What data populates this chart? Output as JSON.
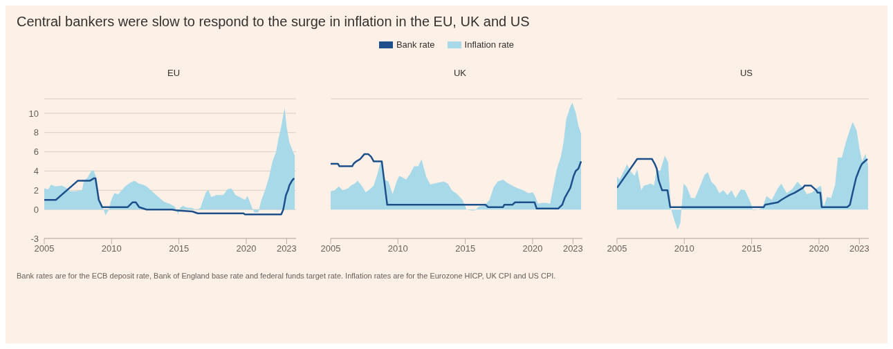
{
  "chart_data": [
    {
      "type": "area",
      "title": "EU",
      "annotations": [
        "Central bankers were slow to respond to the surge in inflation in the EU, UK and US",
        "Bank rates are for the ECB deposit rate, Bank of England base rate and federal funds target rate. Inflation rates are for the Eurozone HICP, UK CPI and US CPI."
      ],
      "legend": "top",
      "grid": "y",
      "xlim": [
        2005,
        2023.7
      ],
      "xticks": [
        2005,
        2010,
        2015,
        2020,
        2023
      ],
      "ylim": [
        -3,
        11.5
      ],
      "yticks": [
        -3,
        0,
        2,
        4,
        6,
        8,
        10
      ],
      "series": [
        {
          "name": "Bank rate",
          "type": "line",
          "color": "#1d4f8a",
          "x": [
            2005,
            2005.86,
            2007.5,
            2008.4,
            2008.7,
            2008.8,
            2009.05,
            2009.3,
            2011.2,
            2011.55,
            2011.8,
            2012.05,
            2012.6,
            2014.5,
            2014.85,
            2016.0,
            2016.4,
            2019.8,
            2019.9,
            2022.6,
            2022.75,
            2022.85,
            2022.95,
            2023.1,
            2023.2,
            2023.4,
            2023.56
          ],
          "values": [
            1.0,
            1.0,
            3.0,
            3.0,
            3.25,
            3.25,
            1.0,
            0.25,
            0.25,
            0.75,
            0.75,
            0.25,
            0,
            0,
            -0.1,
            -0.2,
            -0.4,
            -0.4,
            -0.5,
            -0.5,
            0,
            0.75,
            1.5,
            2.0,
            2.5,
            3.0,
            3.25
          ]
        },
        {
          "name": "Inflation rate",
          "color": "#a7d9e9",
          "x": [
            2005,
            2005.3,
            2005.5,
            2005.8,
            2006.3,
            2006.6,
            2006.9,
            2007.3,
            2007.8,
            2007.95,
            2008.2,
            2008.5,
            2008.65,
            2008.9,
            2009.1,
            2009.3,
            2009.55,
            2009.8,
            2009.95,
            2010.2,
            2010.5,
            2011.0,
            2011.4,
            2011.7,
            2012.0,
            2012.3,
            2012.6,
            2013.0,
            2013.4,
            2013.9,
            2014.3,
            2014.7,
            2014.95,
            2015.1,
            2015.3,
            2015.6,
            2015.95,
            2016.3,
            2016.6,
            2017.0,
            2017.2,
            2017.4,
            2017.8,
            2018.3,
            2018.6,
            2018.9,
            2019.2,
            2019.5,
            2019.9,
            2020.1,
            2020.4,
            2020.6,
            2020.9,
            2021.1,
            2021.4,
            2021.7,
            2021.95,
            2022.2,
            2022.4,
            2022.6,
            2022.85,
            2023.0,
            2023.2,
            2023.45,
            2023.6
          ],
          "values": [
            2.2,
            2.1,
            2.6,
            2.4,
            2.5,
            2.3,
            1.9,
            1.9,
            2.0,
            3.0,
            3.3,
            4.0,
            4.1,
            3.2,
            1.1,
            0.5,
            -0.6,
            0.0,
            0.9,
            1.7,
            1.6,
            2.4,
            2.8,
            3.0,
            2.7,
            2.6,
            2.4,
            1.9,
            1.4,
            0.8,
            0.6,
            0.3,
            -0.5,
            0.2,
            0.4,
            0.2,
            0.2,
            -0.1,
            0.2,
            1.8,
            2.0,
            1.3,
            1.5,
            1.5,
            2.1,
            2.2,
            1.5,
            1.3,
            1.0,
            1.4,
            0.3,
            -0.3,
            -0.3,
            0.9,
            2.0,
            3.4,
            5.0,
            5.9,
            7.4,
            8.6,
            10.6,
            8.6,
            7.0,
            6.1,
            5.6
          ]
        }
      ]
    },
    {
      "type": "area",
      "title": "UK",
      "grid": "y",
      "tick_labels": "x",
      "xlim": [
        2005,
        2023.7
      ],
      "xticks": [
        2005,
        2010,
        2015,
        2020,
        2023
      ],
      "ylim": [
        -3,
        11.5
      ],
      "yticks": [
        -3,
        0,
        2,
        4,
        6,
        8,
        10
      ],
      "series": [
        {
          "type": "line",
          "color": "#1d4f8a",
          "x": [
            2005,
            2005.55,
            2005.65,
            2006.6,
            2006.7,
            2006.9,
            2007.2,
            2007.5,
            2007.8,
            2008.0,
            2008.2,
            2008.8,
            2009.2,
            2016.5,
            2016.7,
            2017.8,
            2017.9,
            2018.5,
            2018.7,
            2020.15,
            2020.3,
            2021.9,
            2022.2,
            2022.4,
            2022.6,
            2022.8,
            2022.95,
            2023.05,
            2023.2,
            2023.4,
            2023.6
          ],
          "values": [
            4.75,
            4.75,
            4.5,
            4.5,
            4.75,
            5.0,
            5.25,
            5.75,
            5.75,
            5.5,
            5.0,
            5.0,
            0.5,
            0.5,
            0.25,
            0.25,
            0.5,
            0.5,
            0.75,
            0.75,
            0.1,
            0.1,
            0.5,
            1.25,
            1.75,
            2.25,
            3.0,
            3.5,
            4.0,
            4.25,
            5.0
          ]
        },
        {
          "color": "#a7d9e9",
          "x": [
            2005,
            2005.3,
            2005.6,
            2005.9,
            2006.3,
            2006.5,
            2006.8,
            2007.0,
            2007.3,
            2007.6,
            2007.9,
            2008.2,
            2008.5,
            2008.75,
            2009.0,
            2009.3,
            2009.6,
            2009.9,
            2010.1,
            2010.4,
            2010.6,
            2010.9,
            2011.2,
            2011.5,
            2011.75,
            2012.1,
            2012.4,
            2012.7,
            2013.0,
            2013.4,
            2013.7,
            2014.0,
            2014.4,
            2014.8,
            2015.1,
            2015.4,
            2015.7,
            2016.0,
            2016.4,
            2016.8,
            2017.1,
            2017.4,
            2017.8,
            2018.2,
            2018.6,
            2018.9,
            2019.3,
            2019.7,
            2020.0,
            2020.15,
            2020.4,
            2020.7,
            2021.0,
            2021.3,
            2021.5,
            2021.8,
            2022.1,
            2022.3,
            2022.5,
            2022.8,
            2022.95,
            2023.2,
            2023.4,
            2023.6
          ],
          "values": [
            1.9,
            2.0,
            2.4,
            2.0,
            2.2,
            2.5,
            2.7,
            3.0,
            2.5,
            1.8,
            2.1,
            2.5,
            3.8,
            5.2,
            3.1,
            2.9,
            1.6,
            2.9,
            3.5,
            3.3,
            3.1,
            3.7,
            4.5,
            4.5,
            5.2,
            3.4,
            2.6,
            2.7,
            2.8,
            2.9,
            2.7,
            2.0,
            1.6,
            1.0,
            0.0,
            -0.1,
            -0.1,
            0.3,
            0.4,
            1.0,
            2.3,
            2.9,
            3.1,
            2.7,
            2.4,
            2.2,
            2.0,
            1.7,
            1.8,
            1.5,
            0.6,
            0.7,
            0.7,
            0.6,
            2.1,
            4.2,
            5.5,
            7.0,
            9.4,
            10.7,
            11.1,
            10.1,
            8.7,
            7.9
          ]
        }
      ]
    },
    {
      "type": "area",
      "title": "US",
      "grid": "y",
      "tick_labels": "x",
      "xlim": [
        2005,
        2023.7
      ],
      "xticks": [
        2005,
        2010,
        2015,
        2020,
        2023
      ],
      "ylim": [
        -3,
        11.5
      ],
      "yticks": [
        -3,
        0,
        2,
        4,
        6,
        8,
        10
      ],
      "series": [
        {
          "type": "line",
          "color": "#1d4f8a",
          "x": [
            2005,
            2006.5,
            2007.6,
            2007.8,
            2007.95,
            2008.1,
            2008.35,
            2008.75,
            2008.95,
            2015.9,
            2016.0,
            2016.95,
            2017.2,
            2017.5,
            2017.8,
            2018.2,
            2018.5,
            2018.8,
            2018.95,
            2019.4,
            2019.8,
            2019.9,
            2020.1,
            2020.2,
            2022.1,
            2022.3,
            2022.5,
            2022.75,
            2022.95,
            2023.1,
            2023.2,
            2023.4,
            2023.6
          ],
          "values": [
            2.25,
            5.25,
            5.25,
            4.75,
            4.25,
            3.0,
            2.0,
            2.0,
            0.25,
            0.25,
            0.5,
            0.75,
            1.0,
            1.25,
            1.5,
            1.75,
            2.0,
            2.25,
            2.5,
            2.5,
            2.0,
            1.75,
            1.75,
            0.25,
            0.25,
            0.5,
            1.75,
            3.25,
            4.0,
            4.5,
            4.75,
            5.0,
            5.25
          ]
        },
        {
          "color": "#a7d9e9",
          "x": [
            2005,
            2005.2,
            2005.4,
            2005.75,
            2006.0,
            2006.3,
            2006.5,
            2006.8,
            2007.0,
            2007.3,
            2007.5,
            2007.75,
            2007.95,
            2008.2,
            2008.55,
            2008.8,
            2009.0,
            2009.3,
            2009.5,
            2009.7,
            2009.95,
            2010.2,
            2010.5,
            2010.8,
            2011.1,
            2011.5,
            2011.75,
            2012.0,
            2012.3,
            2012.6,
            2012.9,
            2013.2,
            2013.5,
            2013.8,
            2014.2,
            2014.5,
            2014.9,
            2015.1,
            2015.5,
            2015.8,
            2016.1,
            2016.5,
            2016.9,
            2017.2,
            2017.6,
            2018.0,
            2018.4,
            2018.8,
            2019.1,
            2019.5,
            2019.9,
            2020.15,
            2020.35,
            2020.6,
            2020.9,
            2021.2,
            2021.4,
            2021.7,
            2022.0,
            2022.3,
            2022.5,
            2022.8,
            2023.0,
            2023.2,
            2023.45,
            2023.65
          ],
          "values": [
            3.4,
            3.1,
            3.7,
            4.7,
            4.0,
            3.5,
            4.2,
            2.0,
            2.5,
            2.6,
            2.7,
            2.5,
            4.2,
            4.0,
            5.6,
            4.9,
            0.1,
            -1.3,
            -2.1,
            -1.4,
            2.7,
            2.3,
            1.2,
            1.2,
            2.2,
            3.6,
            3.9,
            2.9,
            2.5,
            1.7,
            2.0,
            1.5,
            2.0,
            1.2,
            2.1,
            2.0,
            0.8,
            -0.1,
            0.0,
            0.2,
            1.4,
            1.0,
            2.1,
            2.7,
            1.7,
            2.1,
            2.9,
            2.3,
            1.6,
            1.8,
            2.3,
            2.5,
            0.3,
            1.3,
            1.2,
            2.6,
            5.4,
            5.4,
            7.0,
            8.3,
            9.1,
            8.2,
            6.4,
            5.0,
            5.8,
            4.6
          ]
        }
      ]
    }
  ]
}
